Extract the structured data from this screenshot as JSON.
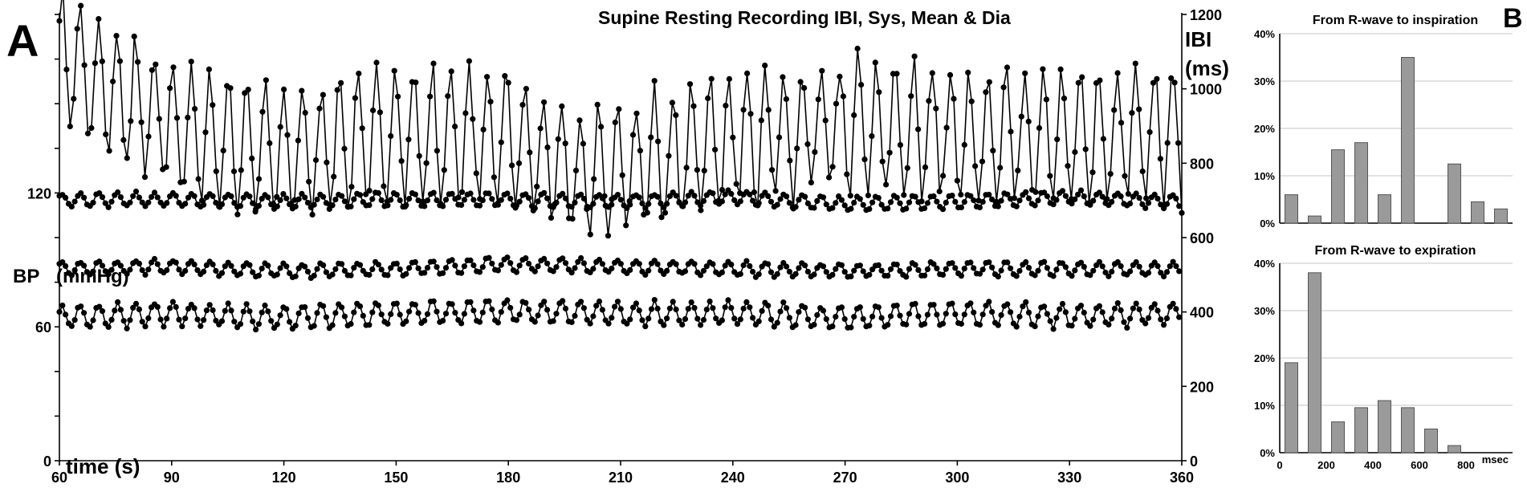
{
  "chart_data": [
    {
      "panel": "A",
      "type": "line",
      "title": "Supine Resting Recording IBI, Sys, Mean & Dia",
      "xlabel": "time (s)",
      "ylabel_left": "BP",
      "ylabel_left_unit": "(mmHg)",
      "ylabel_right": "IBI",
      "ylabel_right_unit": "(ms)",
      "x": {
        "min": 60,
        "max": 360,
        "ticks": [
          60,
          90,
          120,
          150,
          180,
          210,
          240,
          270,
          300,
          330,
          360
        ]
      },
      "y_left": {
        "min": 0,
        "max": 200,
        "ticks": [
          0,
          60,
          120
        ]
      },
      "y_right": {
        "min": 0,
        "max": 1200,
        "ticks": [
          0,
          200,
          400,
          600,
          800,
          1000,
          1200
        ]
      },
      "markers": "filled circles",
      "series": [
        {
          "axis": "right",
          "mean": 880,
          "amplitude": 175,
          "period_s": 4.95,
          "samples_per_s": 1.05,
          "values": [
            {
              "x": 60,
              "y": 1090
            },
            {
              "x": 90,
              "y": 900
            },
            {
              "x": 120,
              "y": 820
            },
            {
              "x": 150,
              "y": 880
            },
            {
              "x": 180,
              "y": 860
            },
            {
              "x": 200,
              "y": 760
            },
            {
              "x": 240,
              "y": 860
            },
            {
              "x": 270,
              "y": 900
            },
            {
              "x": 300,
              "y": 880
            },
            {
              "x": 330,
              "y": 870
            },
            {
              "x": 360,
              "y": 880
            }
          ]
        },
        {
          "axis": "left",
          "mean": 116,
          "amplitude": 3,
          "period_s": 4.95,
          "values": [
            {
              "x": 60,
              "y": 117
            },
            {
              "x": 90,
              "y": 117
            },
            {
              "x": 120,
              "y": 116
            },
            {
              "x": 150,
              "y": 117
            },
            {
              "x": 180,
              "y": 117
            },
            {
              "x": 210,
              "y": 116
            },
            {
              "x": 240,
              "y": 118
            },
            {
              "x": 270,
              "y": 115
            },
            {
              "x": 300,
              "y": 116
            },
            {
              "x": 330,
              "y": 118
            },
            {
              "x": 360,
              "y": 116
            }
          ]
        },
        {
          "axis": "left",
          "mean": 86,
          "amplitude": 3,
          "period_s": 4.95,
          "values": [
            {
              "x": 60,
              "y": 86
            },
            {
              "x": 90,
              "y": 87
            },
            {
              "x": 120,
              "y": 85
            },
            {
              "x": 150,
              "y": 86
            },
            {
              "x": 180,
              "y": 88
            },
            {
              "x": 210,
              "y": 87
            },
            {
              "x": 240,
              "y": 86
            },
            {
              "x": 270,
              "y": 85
            },
            {
              "x": 300,
              "y": 86
            },
            {
              "x": 330,
              "y": 86
            },
            {
              "x": 360,
              "y": 86
            }
          ]
        },
        {
          "axis": "left",
          "mean": 66,
          "amplitude": 5,
          "period_s": 4.95,
          "values": [
            {
              "x": 60,
              "y": 64
            },
            {
              "x": 90,
              "y": 66
            },
            {
              "x": 120,
              "y": 64
            },
            {
              "x": 150,
              "y": 66
            },
            {
              "x": 180,
              "y": 67
            },
            {
              "x": 210,
              "y": 66
            },
            {
              "x": 240,
              "y": 66
            },
            {
              "x": 270,
              "y": 64
            },
            {
              "x": 300,
              "y": 66
            },
            {
              "x": 330,
              "y": 65
            },
            {
              "x": 360,
              "y": 66
            }
          ]
        }
      ]
    },
    {
      "panel": "B",
      "type": "bar",
      "title": "From R-wave to inspiration",
      "xlabel_unit": "msec",
      "bin_centers": [
        50,
        150,
        250,
        350,
        450,
        550,
        650,
        750,
        850,
        950
      ],
      "values": [
        6,
        1.5,
        15.5,
        17,
        6,
        35,
        0,
        12.5,
        4.5,
        3
      ],
      "ylim": [
        0,
        40
      ],
      "yticks": [
        "0%",
        "10%",
        "20%",
        "30%",
        "40%"
      ],
      "bar_color": "#9a9a9a"
    },
    {
      "panel": "B",
      "type": "bar",
      "title": "From R-wave to expiration",
      "xlabel_unit": "msec",
      "bin_centers": [
        50,
        150,
        250,
        350,
        450,
        550,
        650,
        750
      ],
      "values": [
        19,
        38,
        6.5,
        9.5,
        11,
        9.5,
        5,
        1.5
      ],
      "ylim": [
        0,
        40
      ],
      "yticks": [
        "0%",
        "10%",
        "20%",
        "30%",
        "40%"
      ],
      "xticks": [
        "0",
        "200",
        "400",
        "600",
        "800"
      ],
      "bar_color": "#9a9a9a"
    }
  ],
  "panel_labels": {
    "a": "A",
    "b": "B"
  }
}
